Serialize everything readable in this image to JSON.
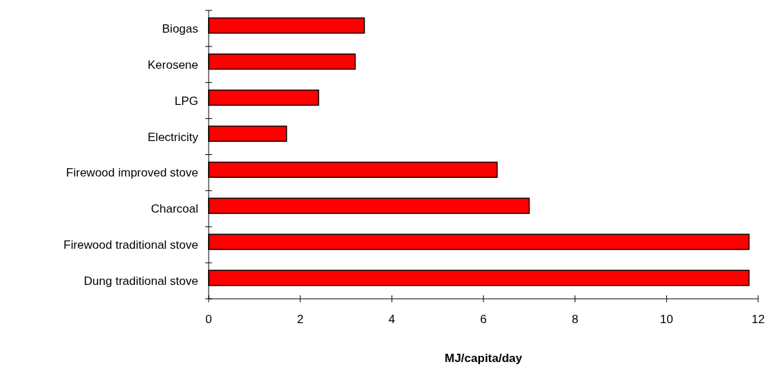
{
  "chart_data": {
    "type": "bar",
    "orientation": "horizontal",
    "xlabel": "MJ/capita/day",
    "categories": [
      "Biogas",
      "Kerosene",
      "LPG",
      "Electricity",
      "Firewood improved stove",
      "Charcoal",
      "Firewood traditional stove",
      "Dung traditional stove"
    ],
    "values": [
      3.4,
      3.2,
      2.4,
      1.7,
      6.3,
      7,
      11.8,
      11.8
    ],
    "color": "#ff0000",
    "xlim": [
      0,
      12
    ],
    "xticks": [
      0,
      2,
      4,
      6,
      8,
      10,
      12
    ],
    "grid": false
  }
}
